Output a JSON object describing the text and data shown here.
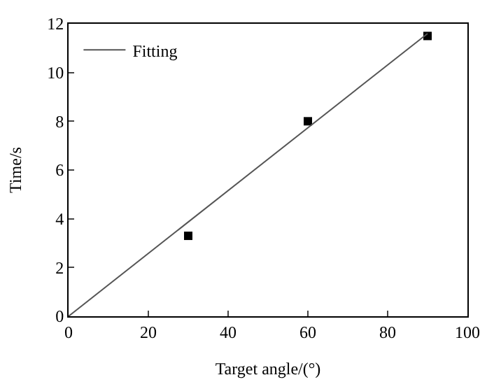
{
  "chart_data": {
    "type": "scatter",
    "xlabel": "Target angle/(°)",
    "ylabel": "Time/s",
    "xlim": [
      0,
      100
    ],
    "xticks": [
      0,
      20,
      40,
      60,
      80,
      100
    ],
    "ylim": [
      0,
      12
    ],
    "yticks": [
      0,
      2,
      4,
      6,
      8,
      10,
      12
    ],
    "legend": "top left",
    "series": [
      {
        "color": "#000000",
        "marker": "square",
        "x": [
          30,
          60,
          90
        ],
        "values": [
          3.3,
          8.0,
          11.5
        ]
      },
      {
        "type": "line",
        "name": "Fitting",
        "color": "#555555",
        "marker": "none",
        "line_style": "solid",
        "x": [
          0,
          90
        ],
        "values": [
          0,
          11.6
        ]
      }
    ]
  }
}
